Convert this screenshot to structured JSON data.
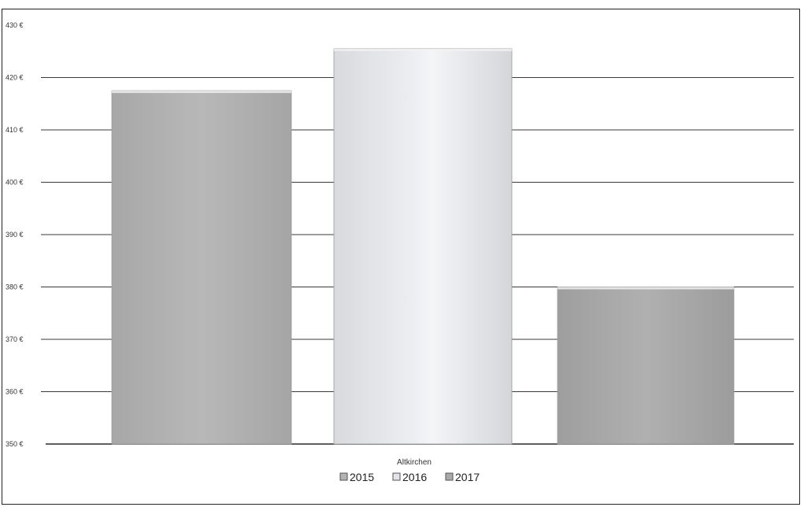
{
  "chart_data": {
    "type": "bar",
    "categories": [
      "Altkirchen"
    ],
    "series": [
      {
        "name": "2015",
        "values": [
          417.5
        ],
        "color": "#b3b3b3"
      },
      {
        "name": "2016",
        "values": [
          425.5
        ],
        "color": "#e2e4e8"
      },
      {
        "name": "2017",
        "values": [
          380
        ],
        "color": "#a9a9a9"
      }
    ],
    "ylim": [
      350,
      430
    ],
    "yticks": [
      "350 €",
      "360 €",
      "370 €",
      "380 €",
      "390 €",
      "400 €",
      "410 €",
      "420 €",
      "430 €"
    ],
    "ytick_values": [
      350,
      360,
      370,
      380,
      390,
      400,
      410,
      420,
      430
    ],
    "grid": true,
    "legend": "bottom",
    "title": "",
    "xlabel": "",
    "ylabel": ""
  }
}
